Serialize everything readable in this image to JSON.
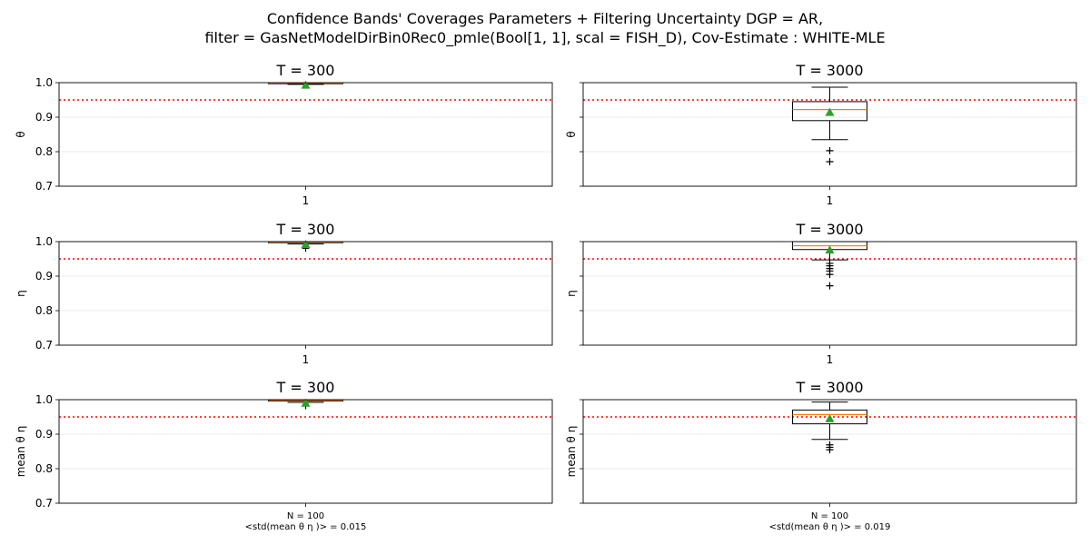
{
  "figure": {
    "title_line1": "Confidence Bands' Coverages Parameters + Filtering Uncertainty DGP = AR,",
    "title_line2": "filter = GasNetModelDirBin0Rec0_pmle(Bool[1, 1], scal = FISH_D), Cov-Estimate : WHITE-MLE"
  },
  "colors": {
    "box": "#000000",
    "median": "#ff7f0e",
    "mean_marker": "#2ca02c",
    "reference_line": "#ff0000",
    "grid": "#e6e6e6"
  },
  "chart_data": [
    {
      "type": "box",
      "row": 0,
      "col": 0,
      "title": "T = 300",
      "ylabel": "θ",
      "ylim": [
        0.7,
        1.0
      ],
      "yticks": [
        "0.7",
        "0.8",
        "0.9",
        "1.0"
      ],
      "show_yticklabels": true,
      "xtick_label": "1",
      "reference_line": 0.95,
      "box": {
        "q1": 0.997,
        "median": 0.999,
        "q3": 1.0,
        "whisker_low": 0.995,
        "whisker_high": 1.0,
        "mean": 0.993,
        "outliers": []
      }
    },
    {
      "type": "box",
      "row": 0,
      "col": 1,
      "title": "T = 3000",
      "ylabel": "θ",
      "ylim": [
        0.7,
        1.0
      ],
      "yticks": [
        "0.7",
        "0.8",
        "0.9",
        "1.0"
      ],
      "show_yticklabels": false,
      "xtick_label": "1",
      "reference_line": 0.95,
      "box": {
        "q1": 0.89,
        "median": 0.922,
        "q3": 0.945,
        "whisker_low": 0.835,
        "whisker_high": 0.987,
        "mean": 0.914,
        "outliers": [
          0.803,
          0.771
        ]
      }
    },
    {
      "type": "box",
      "row": 1,
      "col": 0,
      "title": "T = 300",
      "ylabel": "η",
      "ylim": [
        0.7,
        1.0
      ],
      "yticks": [
        "0.7",
        "0.8",
        "0.9",
        "1.0"
      ],
      "show_yticklabels": true,
      "xtick_label": "1",
      "reference_line": 0.95,
      "box": {
        "q1": 0.997,
        "median": 0.999,
        "q3": 1.0,
        "whisker_low": 0.993,
        "whisker_high": 1.0,
        "mean": 0.992,
        "outliers": [
          0.981
        ]
      }
    },
    {
      "type": "box",
      "row": 1,
      "col": 1,
      "title": "T = 3000",
      "ylabel": "η",
      "ylim": [
        0.7,
        1.0
      ],
      "yticks": [
        "0.7",
        "0.8",
        "0.9",
        "1.0"
      ],
      "show_yticklabels": false,
      "xtick_label": "1",
      "reference_line": 0.95,
      "box": {
        "q1": 0.977,
        "median": 0.988,
        "q3": 1.0,
        "whisker_low": 0.947,
        "whisker_high": 1.0,
        "mean": 0.976,
        "outliers": [
          0.937,
          0.93,
          0.922,
          0.915,
          0.905,
          0.872
        ]
      }
    },
    {
      "type": "box",
      "row": 2,
      "col": 0,
      "title": "T = 300",
      "ylabel": "mean θ η",
      "ylim": [
        0.7,
        1.0
      ],
      "yticks": [
        "0.7",
        "0.8",
        "0.9",
        "1.0"
      ],
      "show_yticklabels": true,
      "xtick_label_line1": "N = 100",
      "xtick_label_line2": "<std(mean θ η )> =  0.015",
      "reference_line": 0.95,
      "box": {
        "q1": 0.996,
        "median": 0.998,
        "q3": 1.0,
        "whisker_low": 0.992,
        "whisker_high": 1.0,
        "mean": 0.99,
        "outliers": [
          0.983
        ]
      }
    },
    {
      "type": "box",
      "row": 2,
      "col": 1,
      "title": "T = 3000",
      "ylabel": "mean θ η",
      "ylim": [
        0.7,
        1.0
      ],
      "yticks": [
        "0.7",
        "0.8",
        "0.9",
        "1.0"
      ],
      "show_yticklabels": false,
      "xtick_label_line1": "N = 100",
      "xtick_label_line2": "<std(mean θ η )> =  0.019",
      "reference_line": 0.95,
      "box": {
        "q1": 0.93,
        "median": 0.957,
        "q3": 0.97,
        "whisker_low": 0.885,
        "whisker_high": 0.993,
        "mean": 0.945,
        "outliers": [
          0.869,
          0.862,
          0.855
        ]
      }
    }
  ]
}
